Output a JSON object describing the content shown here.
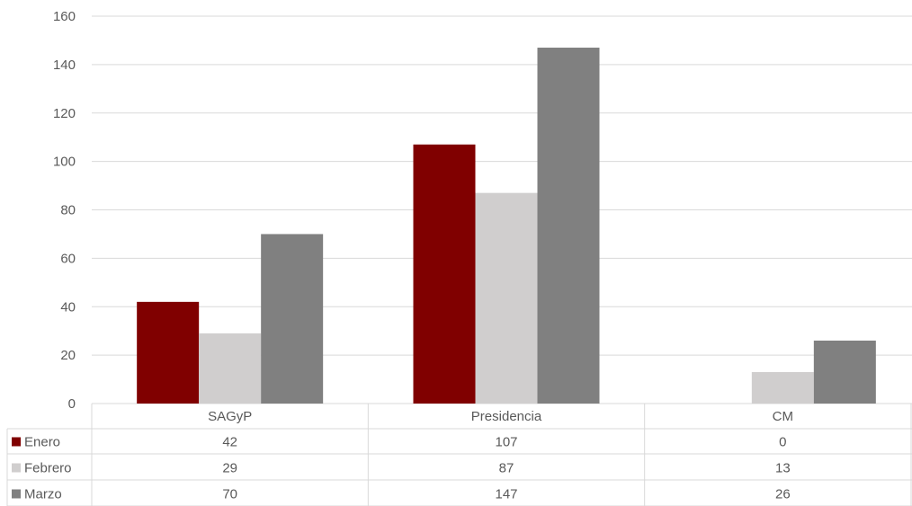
{
  "chart_data": {
    "type": "bar",
    "categories": [
      "SAGyP",
      "Presidencia",
      "CM"
    ],
    "series": [
      {
        "name": "Enero",
        "values": [
          42,
          107,
          0
        ],
        "color": "#800000"
      },
      {
        "name": "Febrero",
        "values": [
          29,
          87,
          13
        ],
        "color": "#d0cece"
      },
      {
        "name": "Marzo",
        "values": [
          70,
          147,
          26
        ],
        "color": "#808080"
      }
    ],
    "ylim": [
      0,
      160
    ],
    "yticks": [
      0,
      20,
      40,
      60,
      80,
      100,
      120,
      140,
      160
    ],
    "grid": true,
    "legend": "data-table",
    "colors": {
      "grid": "#d9d9d9",
      "text": "#595959"
    }
  }
}
